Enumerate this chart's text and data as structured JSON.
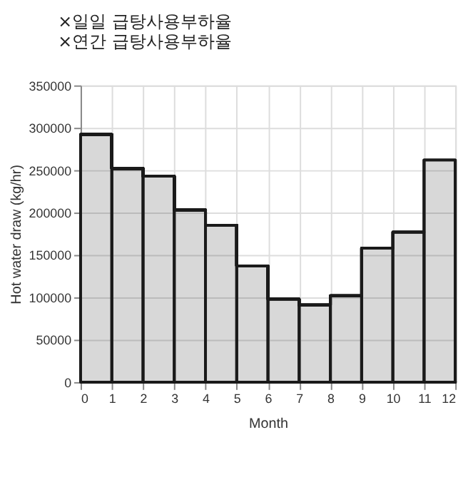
{
  "chart_data": {
    "type": "step",
    "annotations": [
      "×일일 급탕사용부하율",
      "×연간 급탕사용부하율"
    ],
    "xlabel": "Month",
    "ylabel": "Hot water draw (kg/hr)",
    "x": [
      0,
      1,
      2,
      3,
      4,
      5,
      6,
      7,
      8,
      9,
      10,
      11,
      12
    ],
    "series": [
      {
        "type": "area",
        "color": "#1a1a1a",
        "values": [
          292000,
          252000,
          243000,
          203000,
          185000,
          137000,
          98000,
          91000,
          102000,
          158000,
          177000,
          262000,
          262000
        ]
      }
    ],
    "xlim": [
      0,
      12
    ],
    "xticks": [
      0,
      1,
      2,
      3,
      4,
      5,
      6,
      7,
      8,
      9,
      10,
      11,
      12
    ],
    "ylim": [
      0,
      350000
    ],
    "yticks": [
      0,
      50000,
      100000,
      150000,
      200000,
      250000,
      300000,
      350000
    ],
    "grid": true
  }
}
